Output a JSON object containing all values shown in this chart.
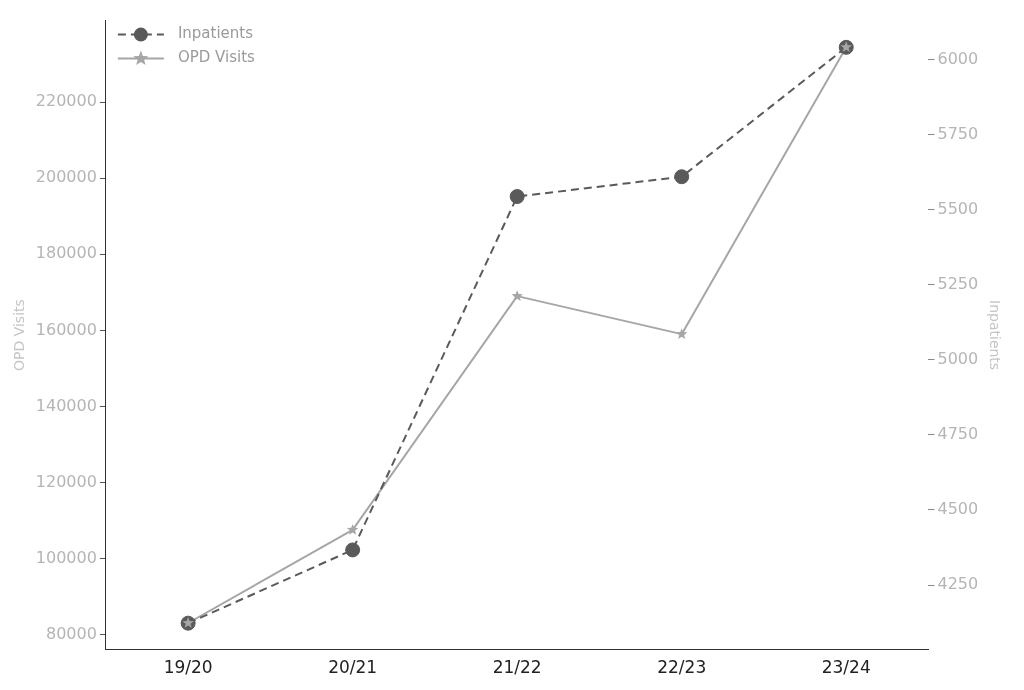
{
  "chart_data": {
    "type": "line",
    "categories": [
      "19/20",
      "20/21",
      "21/22",
      "22/23",
      "23/24"
    ],
    "ylabel": "OPD Visits",
    "y2label": "Inpatients",
    "ylim": [
      76000,
      241500
    ],
    "yticks": [
      80000,
      100000,
      120000,
      140000,
      160000,
      180000,
      200000,
      220000
    ],
    "y2lim": [
      4035,
      6130
    ],
    "y2ticks": [
      4250,
      4500,
      4750,
      5000,
      5250,
      5500,
      5750,
      6000
    ],
    "grid": false,
    "legend": "top left",
    "series": [
      {
        "name": "Inpatients",
        "color": "#5a5a5a",
        "axis": "y2",
        "marker": "circle",
        "line_style": "dashed",
        "values": [
          4123,
          4367,
          5544,
          5610,
          6041
        ]
      },
      {
        "name": "OPD Visits",
        "color": "#a6a6a6",
        "axis": "y",
        "marker": "star",
        "line_style": "solid",
        "values": [
          83000,
          107500,
          169000,
          159000,
          234500
        ]
      }
    ]
  }
}
